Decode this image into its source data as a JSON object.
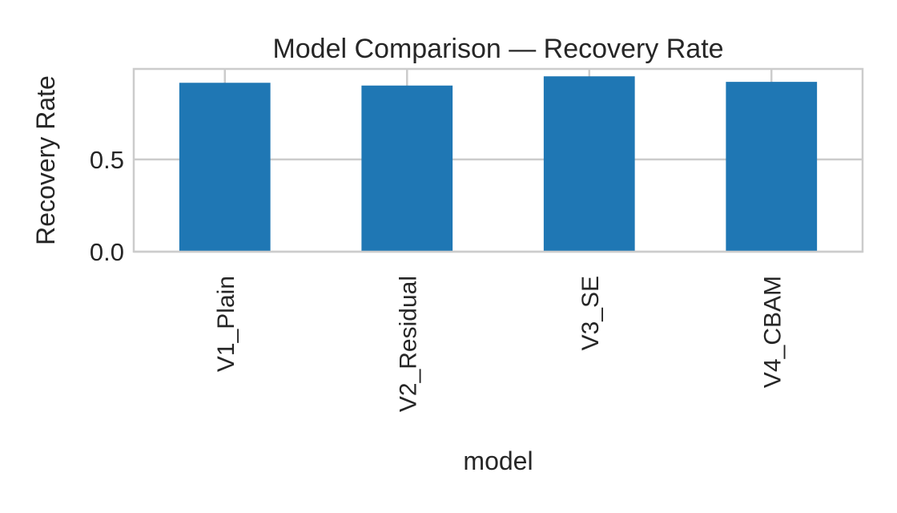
{
  "chart_data": {
    "type": "bar",
    "title": "Model Comparison — Recovery Rate",
    "xlabel": "model",
    "ylabel": "Recovery Rate",
    "categories": [
      "V1_Plain",
      "V2_Residual",
      "V3_SE",
      "V4_CBAM"
    ],
    "values": [
      0.915,
      0.9,
      0.95,
      0.92
    ],
    "ylim": [
      0,
      0.99
    ],
    "yticks": [
      {
        "value": 0.0,
        "label": "0.0"
      },
      {
        "value": 0.5,
        "label": "0.5"
      }
    ],
    "grid": true,
    "bar_color": "#1f77b4",
    "grid_color": "#cccccc",
    "axes_color": "#cccccc"
  }
}
